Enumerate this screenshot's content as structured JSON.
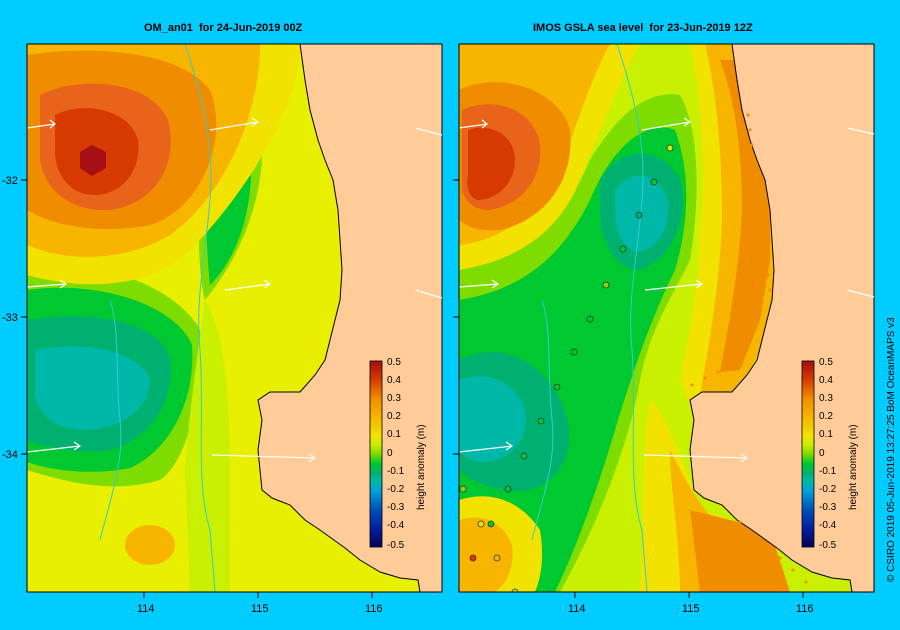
{
  "panels": [
    {
      "title": "OM_an01  for 24-Jun-2019 00Z"
    },
    {
      "title": "IMOS GSLA sea level  for 23-Jun-2019 12Z"
    }
  ],
  "axes": {
    "lon_ticks": [
      "114",
      "115",
      "116"
    ],
    "lat_ticks": [
      "-32",
      "-33",
      "-34"
    ]
  },
  "colorbar": {
    "label": "height anomaly (m)",
    "ticks": [
      "0.5",
      "0.4",
      "0.3",
      "0.2",
      "0.1",
      "0",
      "-0.1",
      "-0.2",
      "-0.3",
      "-0.4",
      "-0.5"
    ],
    "colors": [
      "#a50f15",
      "#d73a00",
      "#e8641a",
      "#f08c00",
      "#f7b500",
      "#f2e200",
      "#c8f000",
      "#7fdc00",
      "#00c830",
      "#00b070",
      "#00b8a8",
      "#00a0d8",
      "#0070c8",
      "#0038a0",
      "#00107a",
      "#00005a"
    ]
  },
  "credit": "© CSIRO 2019   05-Jun-2019 13:27:25 BoM OceanMAPS v3"
}
